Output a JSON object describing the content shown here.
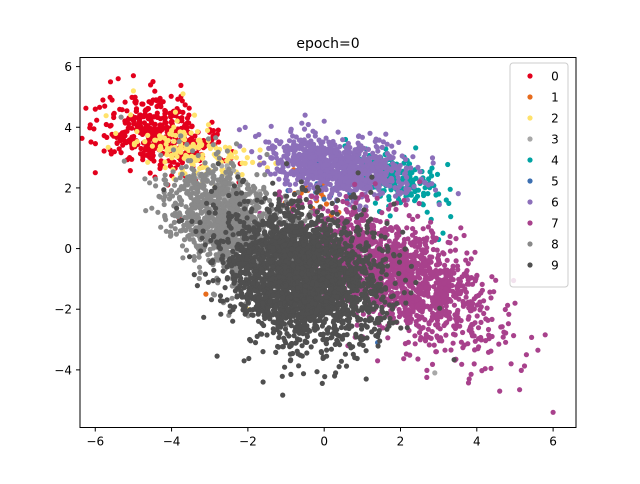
{
  "chart_data": {
    "type": "scatter",
    "title": "epoch=0",
    "xlabel": "",
    "ylabel": "",
    "xlim": [
      -6.4,
      6.6
    ],
    "ylim": [
      -5.9,
      6.3
    ],
    "xticks": [
      -6,
      -4,
      -2,
      0,
      2,
      4,
      6
    ],
    "yticks": [
      -4,
      -2,
      0,
      2,
      4,
      6
    ],
    "xtick_labels": [
      "−6",
      "−4",
      "−2",
      "0",
      "2",
      "4",
      "6"
    ],
    "ytick_labels": [
      "−4",
      "−2",
      "0",
      "2",
      "4",
      "6"
    ],
    "grid": false,
    "legend_position": "top-right",
    "series": [
      {
        "name": "0",
        "color": "#e3001c",
        "center": [
          -4.4,
          3.8
        ],
        "spread": [
          0.75,
          0.6
        ],
        "corr": -0.3,
        "sample_points": [
          [
            -5.6,
            5.5
          ],
          [
            -5.4,
            5.6
          ],
          [
            -5.0,
            5.7
          ],
          [
            -6.0,
            4.6
          ],
          [
            -5.8,
            4.9
          ],
          [
            -6.0,
            2.5
          ],
          [
            -5.3,
            3.8
          ],
          [
            -4.8,
            3.3
          ],
          [
            -3.6,
            3.2
          ],
          [
            -2.6,
            2.9
          ],
          [
            -2.2,
            2.8
          ],
          [
            -3.8,
            1.0
          ],
          [
            -4.1,
            2.1
          ],
          [
            -5.1,
            3.0
          ]
        ]
      },
      {
        "name": "1",
        "color": "#e76b1c",
        "center": [
          -0.2,
          1.6
        ],
        "spread": [
          0.5,
          0.4
        ],
        "corr": 0.0,
        "sample_points": [
          [
            -0.6,
            1.4
          ],
          [
            -0.1,
            1.9
          ],
          [
            -3.1,
            -1.5
          ],
          [
            -0.8,
            2.6
          ]
        ]
      },
      {
        "name": "2",
        "color": "#ffe26b",
        "center": [
          -3.4,
          3.1
        ],
        "spread": [
          0.75,
          0.5
        ],
        "corr": -0.3,
        "sample_points": [
          [
            -3.7,
            5.1
          ],
          [
            -5.0,
            5.2
          ],
          [
            -3.4,
            4.4
          ],
          [
            -2.5,
            3.0
          ],
          [
            -2.9,
            3.4
          ],
          [
            -2.0,
            -2.0
          ],
          [
            -2.3,
            3.0
          ],
          [
            -3.9,
            4.5
          ]
        ]
      },
      {
        "name": "3",
        "color": "#a8a8a8",
        "center": [
          -2.7,
          1.8
        ],
        "spread": [
          0.45,
          0.4
        ],
        "corr": 0.0,
        "sample_points": [
          [
            -2.6,
            1.8
          ],
          [
            -3.1,
            2.4
          ],
          [
            -2.3,
            1.4
          ],
          [
            2.9,
            -4.1
          ]
        ]
      },
      {
        "name": "4",
        "color": "#00a3a3",
        "center": [
          1.9,
          2.3
        ],
        "spread": [
          0.6,
          0.5
        ],
        "corr": -0.4,
        "sample_points": [
          [
            2.1,
            1.9
          ],
          [
            2.3,
            2.5
          ],
          [
            2.7,
            1.2
          ],
          [
            3.0,
            0.3
          ],
          [
            1.6,
            3.1
          ],
          [
            3.2,
            1.6
          ],
          [
            3.0,
            1.8
          ]
        ]
      },
      {
        "name": "5",
        "color": "#3c6fb1",
        "center": [
          0.2,
          2.2
        ],
        "spread": [
          0.4,
          0.3
        ],
        "corr": 0.0,
        "sample_points": [
          [
            0.3,
            2.4
          ],
          [
            -0.2,
            2.8
          ],
          [
            1.4,
            -3.1
          ]
        ]
      },
      {
        "name": "6",
        "color": "#8c6fba",
        "center": [
          0.4,
          2.7
        ],
        "spread": [
          0.9,
          0.5
        ],
        "corr": -0.4,
        "sample_points": [
          [
            -1.8,
            3.7
          ],
          [
            -0.5,
            4.4
          ],
          [
            0.0,
            4.2
          ],
          [
            1.2,
            3.8
          ],
          [
            -0.9,
            3.3
          ],
          [
            0.9,
            3.7
          ],
          [
            1.0,
            2.1
          ],
          [
            -1.4,
            3.0
          ]
        ]
      },
      {
        "name": "7",
        "color": "#a8418c",
        "center": [
          1.9,
          -0.9
        ],
        "spread": [
          1.2,
          1.1
        ],
        "corr": -0.6,
        "sample_points": [
          [
            6.0,
            -5.4
          ],
          [
            5.3,
            -3.5
          ],
          [
            4.9,
            -3.8
          ],
          [
            4.6,
            -4.7
          ],
          [
            3.8,
            -4.3
          ],
          [
            5.0,
            -1.8
          ],
          [
            4.0,
            -0.9
          ],
          [
            3.3,
            0.4
          ],
          [
            1.4,
            -3.7
          ],
          [
            4.4,
            -2.9
          ],
          [
            2.5,
            2.2
          ],
          [
            0.6,
            1.5
          ]
        ]
      },
      {
        "name": "8",
        "color": "#898989",
        "center": [
          -2.4,
          0.7
        ],
        "spread": [
          0.9,
          1.0
        ],
        "corr": -0.5,
        "sample_points": [
          [
            -3.5,
            2.9
          ],
          [
            -4.3,
            1.7
          ],
          [
            -3.3,
            0.0
          ],
          [
            -2.9,
            -1.5
          ],
          [
            -2.5,
            -2.2
          ],
          [
            -1.5,
            3.1
          ],
          [
            -2.0,
            2.1
          ],
          [
            -4.7,
            2.3
          ],
          [
            -3.9,
            1.5
          ]
        ]
      },
      {
        "name": "9",
        "color": "#4f4f4f",
        "center": [
          -0.5,
          -0.9
        ],
        "spread": [
          1.0,
          1.1
        ],
        "corr": -0.2,
        "sample_points": [
          [
            -1.6,
            -4.4
          ],
          [
            -2.1,
            -3.7
          ],
          [
            -1.8,
            -3.1
          ],
          [
            0.3,
            -4.1
          ],
          [
            1.1,
            -4.3
          ],
          [
            1.4,
            -2.9
          ],
          [
            -2.5,
            -0.4
          ],
          [
            -2.2,
            0.5
          ],
          [
            0.8,
            -3.6
          ],
          [
            -3.8,
            0.9
          ],
          [
            -0.6,
            2.2
          ],
          [
            1.5,
            -1.4
          ],
          [
            -1.2,
            -2.6
          ]
        ]
      }
    ]
  }
}
